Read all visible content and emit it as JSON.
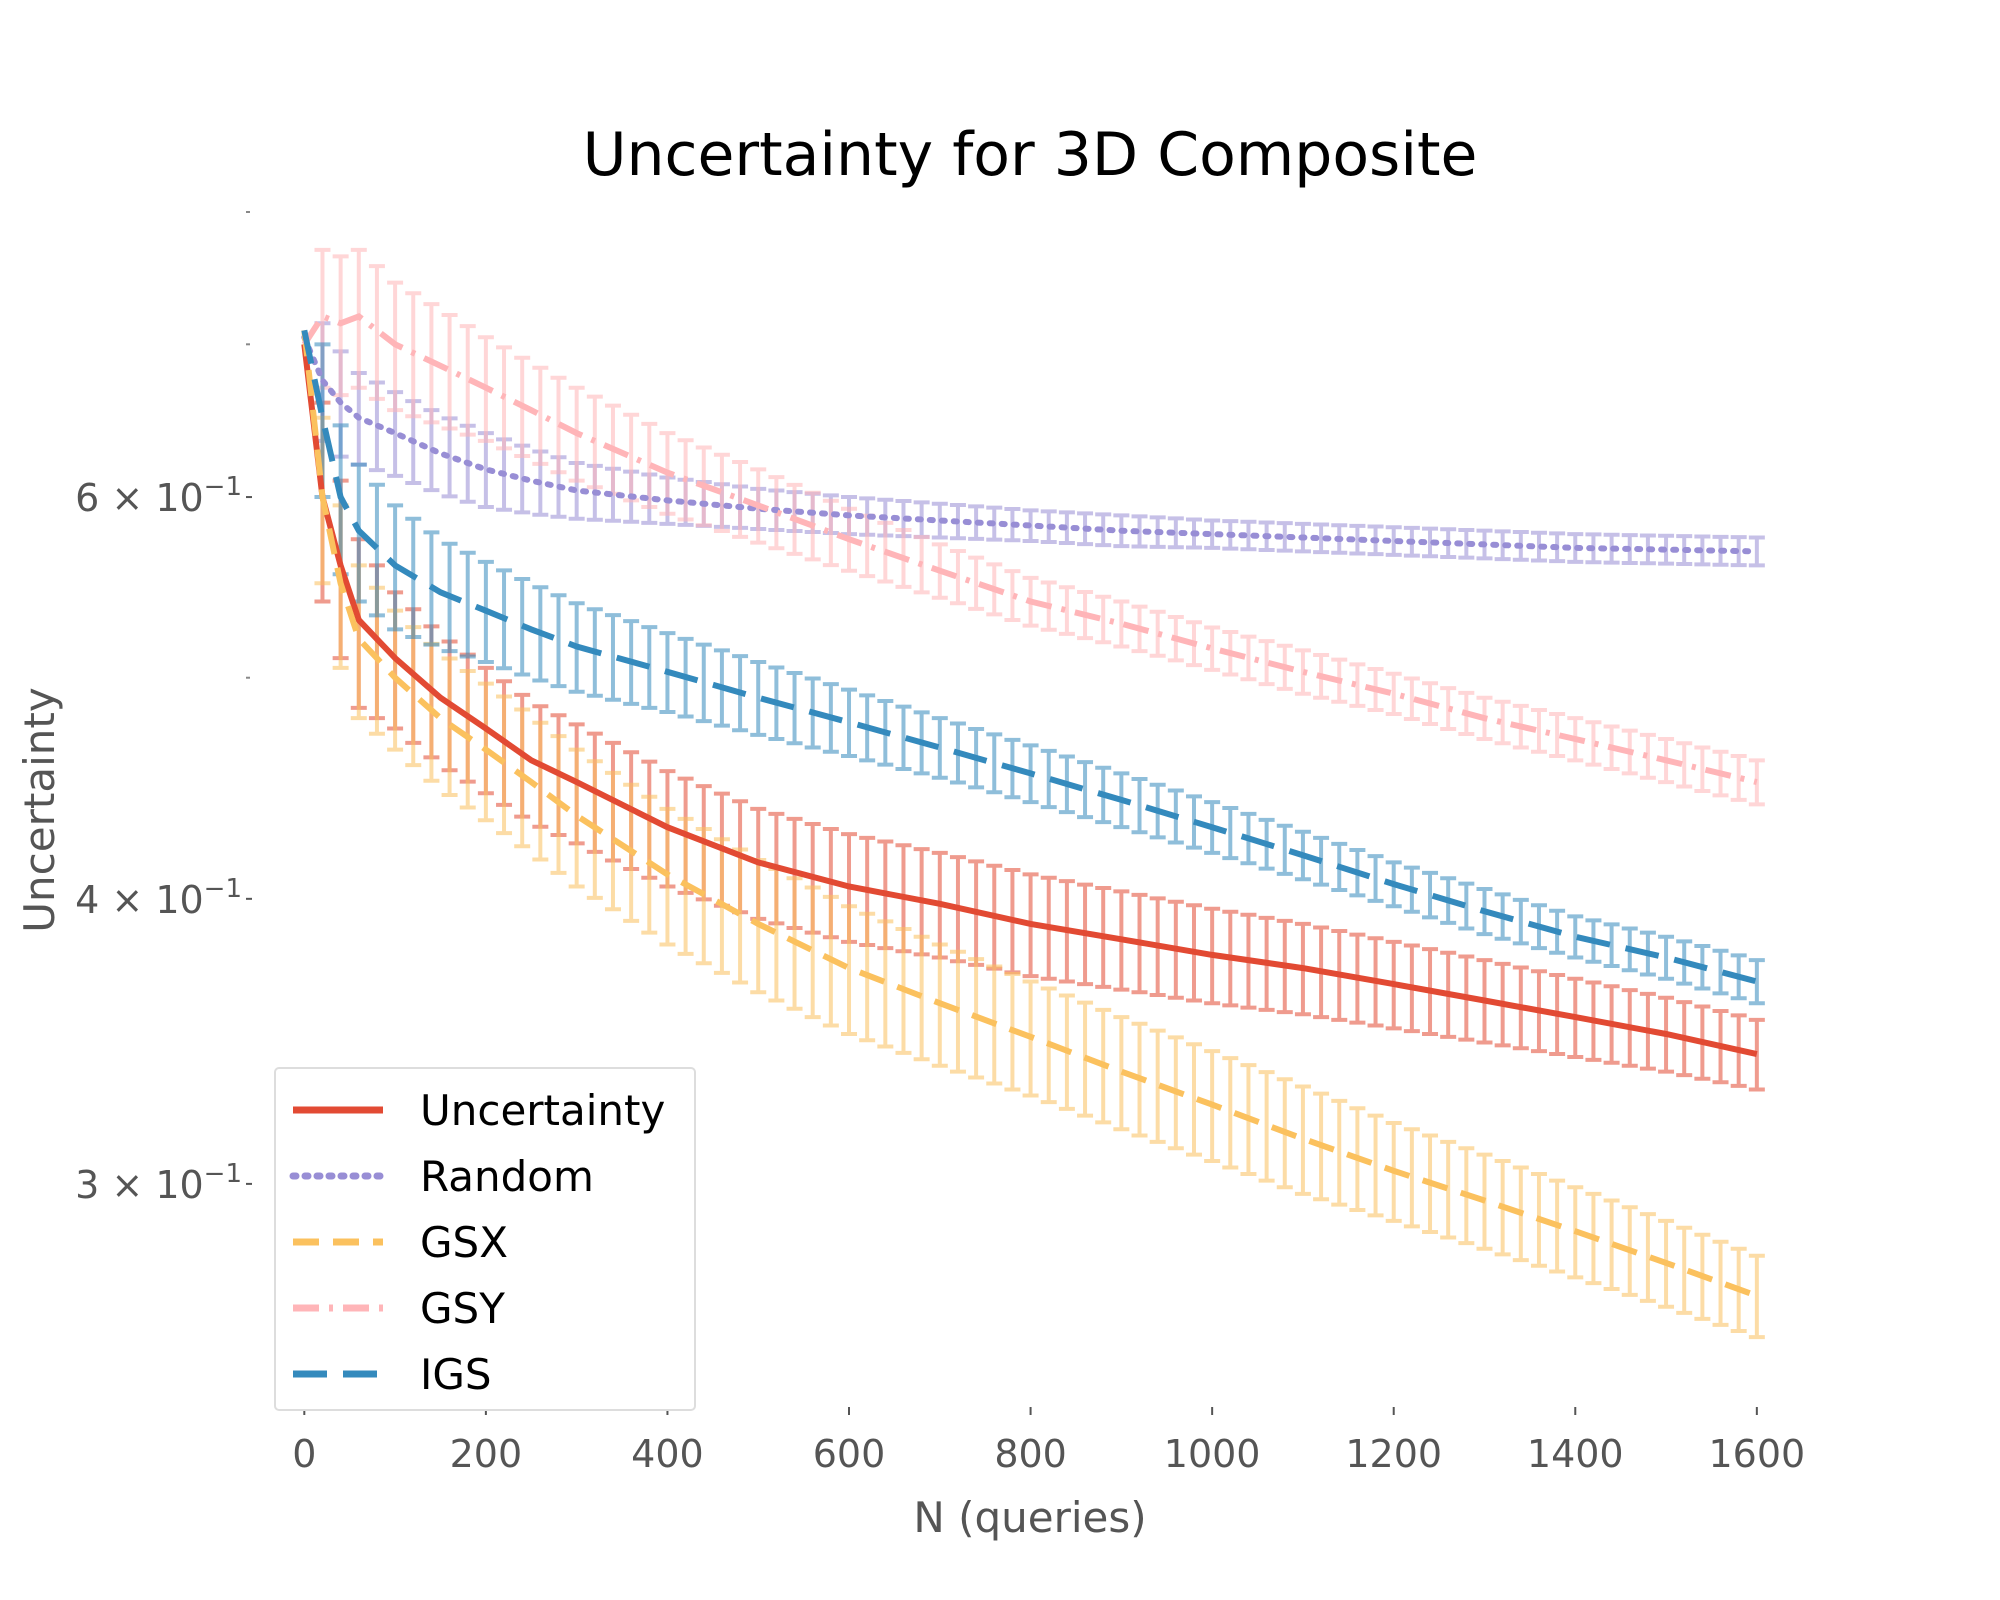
{
  "chart_data": {
    "type": "line",
    "title": "Uncertainty for 3D Composite",
    "xlabel": "N (queries)",
    "ylabel": "Uncertainty",
    "y_scale": "log",
    "grid": false,
    "xlim": [
      -40,
      1620
    ],
    "ylim": [
      0.24,
      0.8
    ],
    "x_ticks": [
      {
        "value": 0,
        "label": "0"
      },
      {
        "value": 200,
        "label": "200"
      },
      {
        "value": 400,
        "label": "400"
      },
      {
        "value": 600,
        "label": "600"
      },
      {
        "value": 800,
        "label": "800"
      },
      {
        "value": 1000,
        "label": "1000"
      },
      {
        "value": 1200,
        "label": "1200"
      },
      {
        "value": 1400,
        "label": "1400"
      },
      {
        "value": 1600,
        "label": "1600"
      }
    ],
    "y_ticks": [
      {
        "value": 0.6,
        "base": "6 × 10",
        "exp": "−1"
      },
      {
        "value": 0.4,
        "base": "4 × 10",
        "exp": "−1"
      },
      {
        "value": 0.3,
        "base": "3 × 10",
        "exp": "−1"
      }
    ],
    "y_minor_ticks": [
      0.5,
      0.7,
      0.8
    ],
    "legend_position": "lower left",
    "x": [
      0,
      20,
      40,
      60,
      100,
      150,
      200,
      250,
      300,
      400,
      500,
      600,
      700,
      800,
      900,
      1000,
      1100,
      1200,
      1300,
      1400,
      1500,
      1600
    ],
    "series": [
      {
        "name": "Uncertainty",
        "color": "#E24A33",
        "dash": "solid",
        "values": [
          0.7,
          0.6,
          0.56,
          0.53,
          0.51,
          0.49,
          0.475,
          0.46,
          0.45,
          0.43,
          0.415,
          0.405,
          0.398,
          0.39,
          0.384,
          0.378,
          0.373,
          0.367,
          0.361,
          0.355,
          0.349,
          0.342
        ],
        "err": [
          0.0,
          0.06,
          0.05,
          0.045,
          0.035,
          0.032,
          0.03,
          0.028,
          0.027,
          0.025,
          0.023,
          0.022,
          0.021,
          0.02,
          0.019,
          0.018,
          0.017,
          0.016,
          0.015,
          0.014,
          0.013,
          0.012
        ]
      },
      {
        "name": "Random",
        "color": "#988ED5",
        "dash": "dotted",
        "values": [
          0.705,
          0.675,
          0.66,
          0.65,
          0.64,
          0.627,
          0.617,
          0.61,
          0.604,
          0.598,
          0.593,
          0.589,
          0.586,
          0.583,
          0.58,
          0.578,
          0.576,
          0.574,
          0.572,
          0.57,
          0.569,
          0.568
        ],
        "err": [
          0.0,
          0.04,
          0.035,
          0.03,
          0.027,
          0.025,
          0.023,
          0.02,
          0.017,
          0.014,
          0.012,
          0.011,
          0.01,
          0.009,
          0.009,
          0.008,
          0.008,
          0.008,
          0.008,
          0.008,
          0.008,
          0.008
        ]
      },
      {
        "name": "GSX",
        "color": "#FBC15E",
        "dash": "dashed",
        "values": [
          0.71,
          0.6,
          0.55,
          0.52,
          0.5,
          0.48,
          0.465,
          0.45,
          0.435,
          0.41,
          0.39,
          0.373,
          0.36,
          0.348,
          0.336,
          0.325,
          0.314,
          0.304,
          0.295,
          0.286,
          0.277,
          0.268
        ],
        "err": [
          0.0,
          0.05,
          0.045,
          0.04,
          0.035,
          0.033,
          0.032,
          0.031,
          0.03,
          0.028,
          0.026,
          0.024,
          0.022,
          0.02,
          0.019,
          0.018,
          0.017,
          0.015,
          0.014,
          0.013,
          0.012,
          0.011
        ]
      },
      {
        "name": "GSY",
        "color": "#FFB5B8",
        "dash": "dashdot",
        "values": [
          0.7,
          0.72,
          0.715,
          0.72,
          0.7,
          0.685,
          0.67,
          0.655,
          0.64,
          0.615,
          0.595,
          0.575,
          0.557,
          0.54,
          0.528,
          0.515,
          0.503,
          0.492,
          0.48,
          0.47,
          0.46,
          0.45
        ],
        "err": [
          0.0,
          0.05,
          0.05,
          0.05,
          0.045,
          0.04,
          0.035,
          0.032,
          0.03,
          0.025,
          0.022,
          0.018,
          0.015,
          0.013,
          0.012,
          0.011,
          0.011,
          0.01,
          0.01,
          0.01,
          0.01,
          0.01
        ]
      },
      {
        "name": "IGS",
        "color": "#348ABD",
        "dash": "longdash",
        "values": [
          0.71,
          0.65,
          0.6,
          0.58,
          0.56,
          0.545,
          0.535,
          0.525,
          0.516,
          0.503,
          0.49,
          0.478,
          0.466,
          0.454,
          0.442,
          0.43,
          0.418,
          0.406,
          0.395,
          0.385,
          0.377,
          0.368
        ],
        "err": [
          0.0,
          0.05,
          0.045,
          0.04,
          0.035,
          0.03,
          0.027,
          0.025,
          0.023,
          0.02,
          0.018,
          0.016,
          0.014,
          0.013,
          0.012,
          0.011,
          0.01,
          0.009,
          0.009,
          0.008,
          0.008,
          0.008
        ]
      }
    ]
  }
}
